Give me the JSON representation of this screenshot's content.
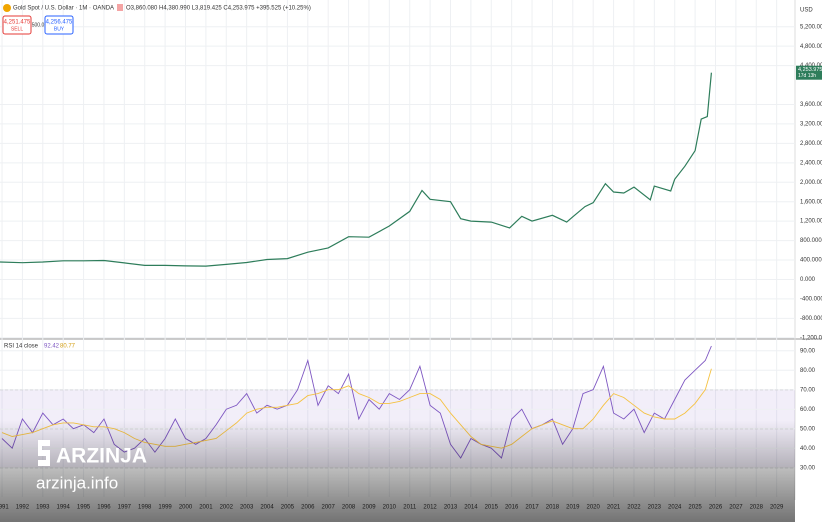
{
  "header": {
    "symbol": "Gold Spot / U.S. Dollar · 1M · OANDA",
    "ohlc": "O3,860.080 H4,380.990 L3,819.425 C4,253.975 +395.525 (+10.25%)",
    "sell_price": "4,251.475",
    "sell": "SELL",
    "spread": "500.0",
    "buy_price": "4,256.475",
    "buy": "BUY",
    "currency": "USD"
  },
  "watermark": {
    "brand": "ARZINJA",
    "site": "arzinja.info"
  },
  "chart_data": [
    {
      "type": "line",
      "color": "#2e7d5b",
      "last_price_label": "4,253.975",
      "countdown": "17d 13h",
      "x": [
        1990.9,
        1992,
        1993,
        1994,
        1995,
        1996,
        1997,
        1998,
        1999,
        2000,
        2001,
        2002,
        2003,
        2004,
        2005,
        2006,
        2007,
        2008,
        2009,
        2010,
        2011,
        2011.6,
        2012,
        2013,
        2013.5,
        2014,
        2015,
        2015.9,
        2016.5,
        2017,
        2018,
        2018.7,
        2019,
        2019.6,
        2020,
        2020.6,
        2021,
        2021.5,
        2022,
        2022.8,
        2023,
        2023.8,
        2024,
        2024.5,
        2025,
        2025.3,
        2025.6,
        2025.8
      ],
      "values": [
        360,
        345,
        360,
        385,
        385,
        390,
        340,
        290,
        290,
        280,
        275,
        310,
        350,
        410,
        430,
        560,
        650,
        880,
        870,
        1100,
        1400,
        1830,
        1650,
        1600,
        1250,
        1200,
        1180,
        1060,
        1300,
        1200,
        1320,
        1180,
        1290,
        1500,
        1580,
        1970,
        1800,
        1780,
        1900,
        1640,
        1920,
        1820,
        2060,
        2330,
        2650,
        3300,
        3350,
        4253.975
      ],
      "xlim": [
        1990.9,
        2029.9
      ],
      "xticks": [
        1991,
        1992,
        1993,
        1994,
        1995,
        1996,
        1997,
        1998,
        1999,
        2000,
        2001,
        2002,
        2003,
        2004,
        2005,
        2006,
        2007,
        2008,
        2009,
        2010,
        2011,
        2012,
        2013,
        2014,
        2015,
        2016,
        2017,
        2018,
        2019,
        2020,
        2021,
        2022,
        2023,
        2024,
        2025,
        2026,
        2027,
        2028,
        2029
      ],
      "ylim": [
        -1225,
        5750
      ],
      "yticks": [
        {
          "value": 5200,
          "label": "5,200.000"
        },
        {
          "value": 4800,
          "label": "4,800.000"
        },
        {
          "value": 4400,
          "label": "4,400.000"
        },
        {
          "value": 3600,
          "label": "3,600.000"
        },
        {
          "value": 3200,
          "label": "3,200.000"
        },
        {
          "value": 2800,
          "label": "2,800.000"
        },
        {
          "value": 2400,
          "label": "2,400.000"
        },
        {
          "value": 2000,
          "label": "2,000.000"
        },
        {
          "value": 1600,
          "label": "1,600.000"
        },
        {
          "value": 1200,
          "label": "1,200.000"
        },
        {
          "value": 800,
          "label": "800.000"
        },
        {
          "value": 400,
          "label": "400.000"
        },
        {
          "value": 0,
          "label": "0.000"
        },
        {
          "value": -400,
          "label": "-400.000"
        },
        {
          "value": -800,
          "label": "-800.000"
        },
        {
          "value": -1200,
          "label": "-1,200.000"
        }
      ],
      "grid": true
    },
    {
      "type": "line",
      "title": "RSI 14 close",
      "legend_values": [
        "92.42",
        "80.77"
      ],
      "x": [
        1991,
        1991.5,
        1992,
        1992.5,
        1993,
        1993.5,
        1994,
        1994.5,
        1995,
        1995.5,
        1996,
        1996.5,
        1997,
        1997.5,
        1998,
        1998.5,
        1999,
        1999.5,
        2000,
        2000.5,
        2001,
        2001.5,
        2002,
        2002.5,
        2003,
        2003.5,
        2004,
        2004.5,
        2005,
        2005.5,
        2006,
        2006.5,
        2007,
        2007.5,
        2008,
        2008.5,
        2009,
        2009.5,
        2010,
        2010.5,
        2011,
        2011.5,
        2012,
        2012.5,
        2013,
        2013.5,
        2014,
        2014.5,
        2015,
        2015.5,
        2016,
        2016.5,
        2017,
        2017.5,
        2018,
        2018.5,
        2019,
        2019.5,
        2020,
        2020.5,
        2021,
        2021.5,
        2022,
        2022.5,
        2023,
        2023.5,
        2024,
        2024.5,
        2025,
        2025.5,
        2025.8
      ],
      "series": [
        {
          "name": "RSI",
          "color": "#7e57c2",
          "values": [
            45,
            40,
            55,
            48,
            58,
            52,
            55,
            50,
            52,
            48,
            55,
            42,
            38,
            40,
            45,
            38,
            45,
            55,
            45,
            42,
            45,
            52,
            60,
            62,
            68,
            58,
            62,
            60,
            62,
            70,
            85,
            62,
            72,
            68,
            78,
            55,
            65,
            60,
            68,
            65,
            70,
            82,
            62,
            58,
            42,
            35,
            45,
            42,
            40,
            35,
            55,
            60,
            50,
            52,
            55,
            42,
            50,
            68,
            70,
            82,
            58,
            55,
            60,
            48,
            58,
            55,
            65,
            75,
            80,
            85,
            92.42
          ]
        },
        {
          "name": "MA",
          "color": "#f5c242",
          "values": [
            48,
            46,
            47,
            48,
            50,
            52,
            53,
            53,
            52,
            51,
            51,
            50,
            48,
            45,
            43,
            42,
            41,
            41,
            42,
            43,
            44,
            45,
            49,
            53,
            58,
            60,
            61,
            61,
            62,
            63,
            67,
            68,
            70,
            70,
            72,
            68,
            66,
            63,
            63,
            64,
            66,
            68,
            68,
            65,
            58,
            52,
            46,
            42,
            41,
            40,
            42,
            46,
            50,
            52,
            54,
            52,
            50,
            50,
            55,
            62,
            68,
            66,
            62,
            58,
            56,
            55,
            55,
            58,
            63,
            70,
            80.77
          ]
        }
      ],
      "ylim": [
        15,
        96
      ],
      "yticks": [
        {
          "value": 90,
          "label": "90.00"
        },
        {
          "value": 80,
          "label": "80.00"
        },
        {
          "value": 70,
          "label": "70.00"
        },
        {
          "value": 60,
          "label": "60.00"
        },
        {
          "value": 50,
          "label": "50.00"
        },
        {
          "value": 40,
          "label": "40.00"
        },
        {
          "value": 30,
          "label": "30.00"
        }
      ],
      "bands": [
        70,
        50,
        30
      ]
    }
  ]
}
